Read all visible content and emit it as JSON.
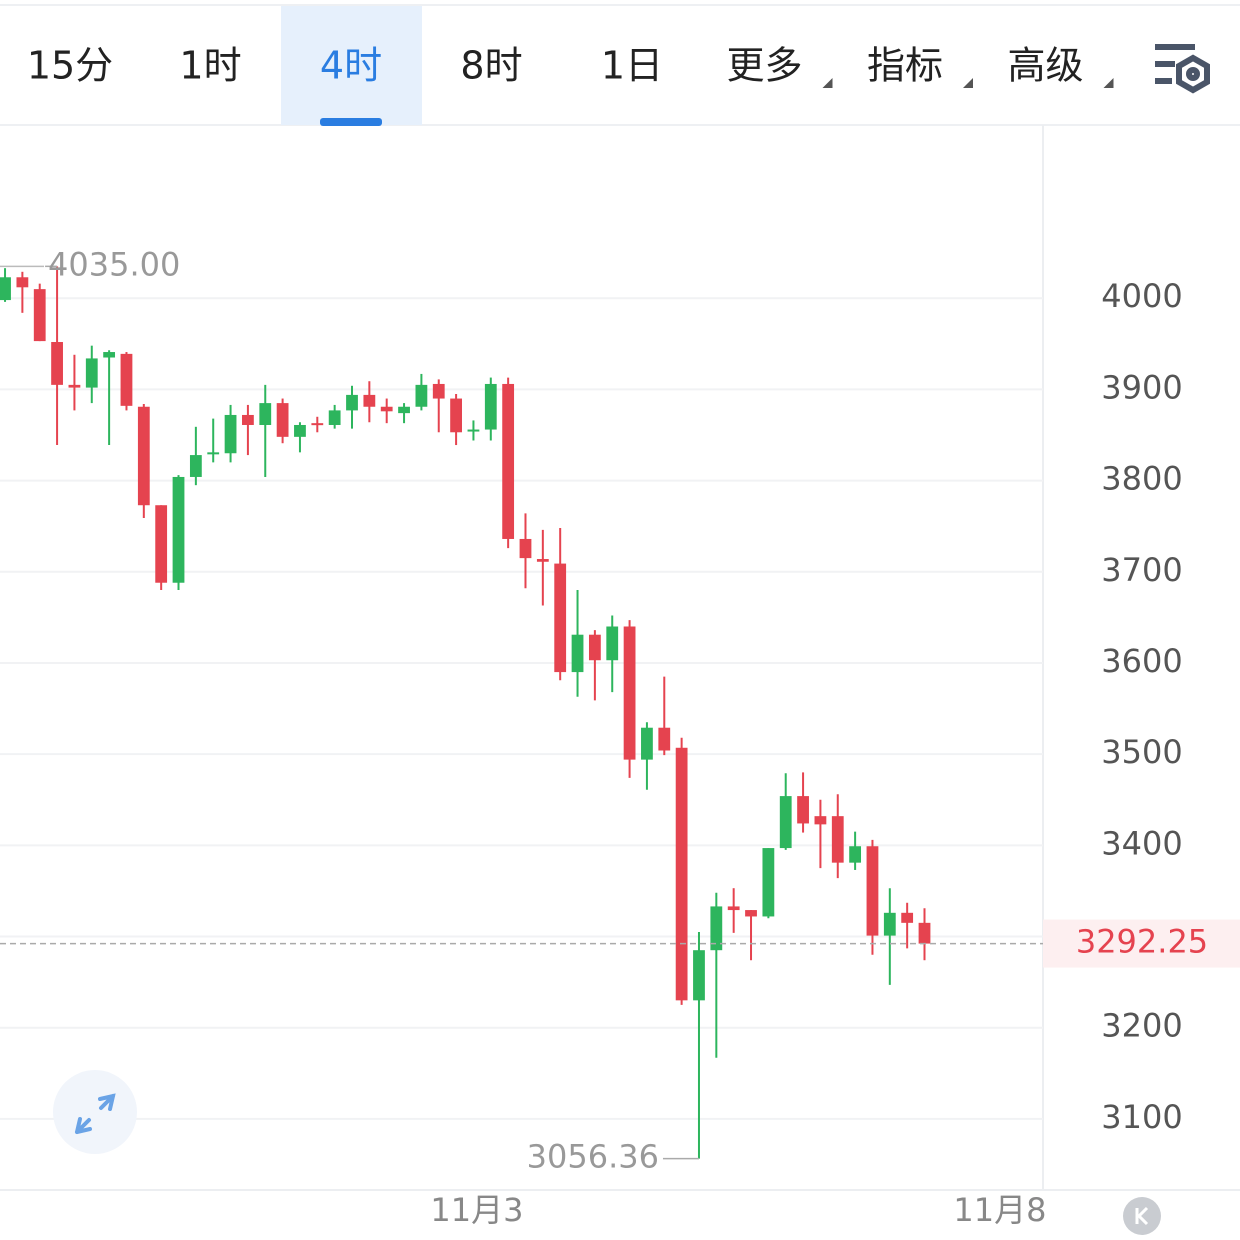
{
  "toolbar": {
    "tabs": [
      "15分",
      "1时",
      "4时",
      "8时",
      "1日",
      "更多",
      "指标",
      "高级"
    ],
    "active_tab": 2
  },
  "chart_data": {
    "type": "candlestick",
    "up_color": "#2db55d",
    "down_color": "#e5434f",
    "open": [
      3998,
      4023,
      4010,
      3952,
      3905,
      3902,
      3935,
      3939,
      3881,
      3773,
      3688,
      3804,
      3829,
      3830,
      3872,
      3861,
      3885,
      3848,
      3863,
      3861,
      3877,
      3894,
      3881,
      3874,
      3881,
      3906,
      3890,
      3854,
      3856,
      3906,
      3736,
      3714,
      3709,
      3590,
      3631,
      3603,
      3640,
      3494,
      3529,
      3507,
      3230,
      3285,
      3333,
      3329,
      3322,
      3397,
      3454,
      3432,
      3432,
      3381,
      3399,
      3301,
      3326,
      3315
    ],
    "high": [
      4033,
      4029,
      4016,
      4035,
      3938,
      3948,
      3943,
      3941,
      3884,
      3773,
      3806,
      3859,
      3868,
      3883,
      3883,
      3905,
      3890,
      3864,
      3870,
      3883,
      3904,
      3909,
      3890,
      3885,
      3917,
      3911,
      3895,
      3866,
      3913,
      3913,
      3764,
      3746,
      3748,
      3680,
      3636,
      3652,
      3647,
      3535,
      3585,
      3518,
      3305,
      3348,
      3353,
      3329,
      3397,
      3479,
      3480,
      3450,
      3456,
      3415,
      3406,
      3353,
      3337,
      3331
    ],
    "low": [
      3996,
      3984,
      3953,
      3839,
      3877,
      3885,
      3839,
      3877,
      3759,
      3680,
      3680,
      3795,
      3820,
      3820,
      3828,
      3804,
      3841,
      3831,
      3853,
      3857,
      3857,
      3864,
      3863,
      3863,
      3877,
      3853,
      3839,
      3844,
      3844,
      3726,
      3682,
      3663,
      3581,
      3563,
      3559,
      3568,
      3474,
      3461,
      3499,
      3225,
      3056.36,
      3167,
      3304,
      3274,
      3320,
      3395,
      3414,
      3375,
      3364,
      3373,
      3280,
      3247,
      3287,
      3274
    ],
    "close": [
      4023,
      4012,
      3953,
      3905,
      3902,
      3934,
      3941,
      3882,
      3773,
      3688,
      3804,
      3828,
      3831,
      3872,
      3861,
      3885,
      3848,
      3861,
      3861,
      3877,
      3894,
      3881,
      3876,
      3881,
      3905,
      3890,
      3853,
      3856,
      3906,
      3736,
      3715,
      3711,
      3590,
      3631,
      3603,
      3640,
      3494,
      3529,
      3504,
      3230,
      3285,
      3333,
      3329,
      3322,
      3397,
      3454,
      3424,
      3423,
      3381,
      3399,
      3301,
      3326,
      3315,
      3292.25
    ],
    "xlim": [
      -0.29,
      59.83
    ],
    "xticks": [
      {
        "value": 27.2,
        "label": "11月3"
      },
      {
        "value": 57.35,
        "label": "11月8"
      }
    ],
    "ylim": [
      3022,
      4190
    ],
    "yticks": [
      3100,
      3200,
      3300,
      3400,
      3500,
      3600,
      3700,
      3800,
      3900,
      4000
    ],
    "grid": true,
    "annotations": {
      "max": {
        "value": 4035,
        "label": "4035.00"
      },
      "min": 3056.36,
      "last_price": 3292.25
    }
  }
}
